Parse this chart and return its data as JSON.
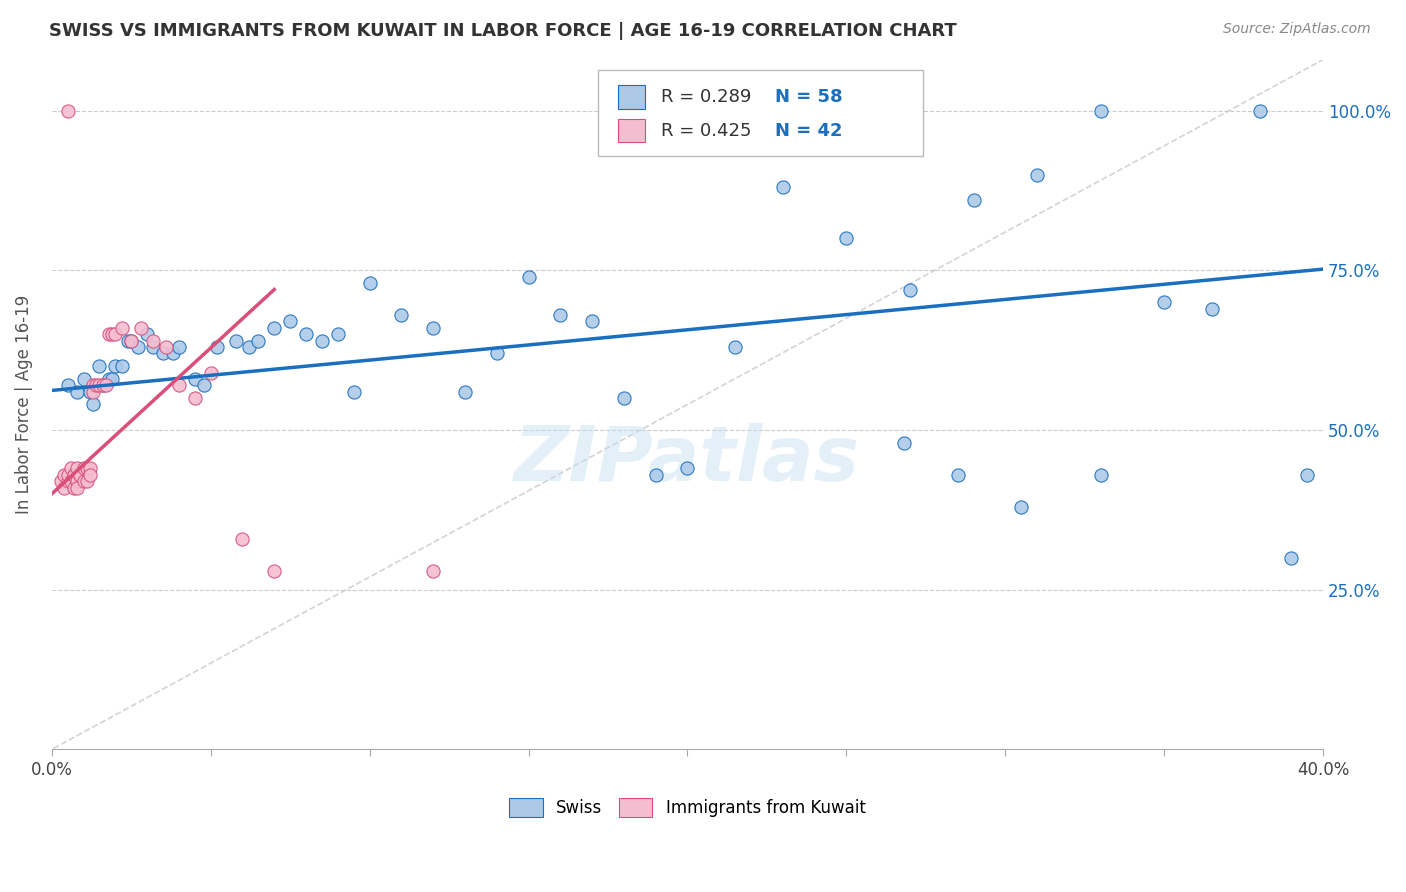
{
  "title": "SWISS VS IMMIGRANTS FROM KUWAIT IN LABOR FORCE | AGE 16-19 CORRELATION CHART",
  "source": "Source: ZipAtlas.com",
  "ylabel": "In Labor Force | Age 16-19",
  "xlim": [
    0.0,
    0.4
  ],
  "ylim": [
    0.0,
    1.08
  ],
  "xtick_vals": [
    0.0,
    0.05,
    0.1,
    0.15,
    0.2,
    0.25,
    0.3,
    0.35,
    0.4
  ],
  "xtick_labels_show": [
    "0.0%",
    "",
    "",
    "",
    "",
    "",
    "",
    "",
    "40.0%"
  ],
  "ytick_vals": [
    0.25,
    0.5,
    0.75,
    1.0
  ],
  "ytick_labels": [
    "25.0%",
    "50.0%",
    "75.0%",
    "100.0%"
  ],
  "legend_r_swiss": "0.289",
  "legend_n_swiss": "58",
  "legend_r_kuwait": "0.425",
  "legend_n_kuwait": "42",
  "swiss_color": "#adc9e8",
  "kuwait_color": "#f5bdd0",
  "swiss_line_color": "#1a6fbe",
  "kuwait_line_color": "#d94f7a",
  "diag_line_color": "#c8c8c8",
  "watermark": "ZIPatlas",
  "swiss_x": [
    0.005,
    0.008,
    0.01,
    0.012,
    0.013,
    0.015,
    0.016,
    0.018,
    0.019,
    0.02,
    0.022,
    0.024,
    0.025,
    0.027,
    0.03,
    0.032,
    0.035,
    0.038,
    0.04,
    0.045,
    0.048,
    0.052,
    0.058,
    0.062,
    0.065,
    0.07,
    0.075,
    0.08,
    0.085,
    0.09,
    0.095,
    0.1,
    0.11,
    0.12,
    0.13,
    0.14,
    0.15,
    0.16,
    0.17,
    0.18,
    0.19,
    0.2,
    0.215,
    0.23,
    0.25,
    0.27,
    0.29,
    0.31,
    0.33,
    0.35,
    0.365,
    0.38,
    0.39,
    0.395,
    0.268,
    0.285,
    0.305,
    0.33
  ],
  "swiss_y": [
    0.57,
    0.56,
    0.58,
    0.56,
    0.54,
    0.6,
    0.57,
    0.58,
    0.58,
    0.6,
    0.6,
    0.64,
    0.64,
    0.63,
    0.65,
    0.63,
    0.62,
    0.62,
    0.63,
    0.58,
    0.57,
    0.63,
    0.64,
    0.63,
    0.64,
    0.66,
    0.67,
    0.65,
    0.64,
    0.65,
    0.56,
    0.73,
    0.68,
    0.66,
    0.56,
    0.62,
    0.74,
    0.68,
    0.67,
    0.55,
    0.43,
    0.44,
    0.63,
    0.88,
    0.8,
    0.72,
    0.86,
    0.9,
    1.0,
    0.7,
    0.69,
    1.0,
    0.3,
    0.43,
    0.48,
    0.43,
    0.38,
    0.43
  ],
  "kuwait_x": [
    0.003,
    0.004,
    0.004,
    0.005,
    0.005,
    0.006,
    0.006,
    0.007,
    0.007,
    0.007,
    0.008,
    0.008,
    0.008,
    0.009,
    0.009,
    0.01,
    0.01,
    0.011,
    0.011,
    0.012,
    0.012,
    0.013,
    0.013,
    0.014,
    0.015,
    0.016,
    0.017,
    0.018,
    0.019,
    0.02,
    0.022,
    0.025,
    0.028,
    0.032,
    0.036,
    0.04,
    0.045,
    0.05,
    0.06,
    0.07,
    0.005,
    0.12
  ],
  "kuwait_y": [
    0.42,
    0.43,
    0.41,
    0.42,
    0.43,
    0.44,
    0.42,
    0.43,
    0.41,
    0.43,
    0.42,
    0.44,
    0.41,
    0.43,
    0.43,
    0.44,
    0.42,
    0.44,
    0.42,
    0.44,
    0.43,
    0.57,
    0.56,
    0.57,
    0.57,
    0.57,
    0.57,
    0.65,
    0.65,
    0.65,
    0.66,
    0.64,
    0.66,
    0.64,
    0.63,
    0.57,
    0.55,
    0.59,
    0.33,
    0.28,
    1.0,
    0.28
  ],
  "swiss_trend_x": [
    0.0,
    0.4
  ],
  "swiss_trend_y": [
    0.562,
    0.752
  ],
  "kuwait_trend_x": [
    0.0,
    0.07
  ],
  "kuwait_trend_y": [
    0.4,
    0.72
  ]
}
